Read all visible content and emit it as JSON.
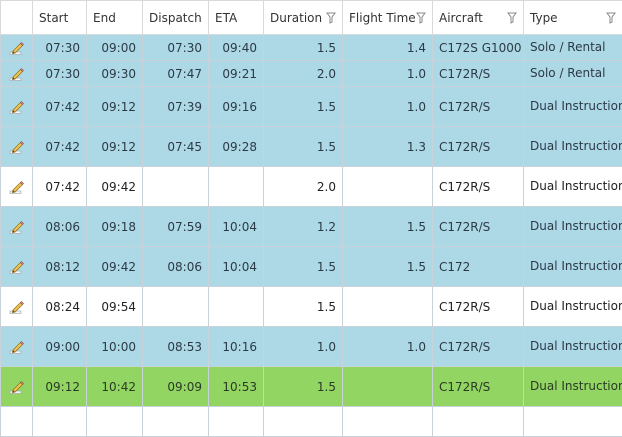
{
  "columns": {
    "start": "Start",
    "end": "End",
    "dispatch": "Dispatch",
    "eta": "ETA",
    "duration": "Duration",
    "flight_time": "Flight Time",
    "aircraft": "Aircraft",
    "type": "Type"
  },
  "icons": {
    "edit": "pencil-edit-icon",
    "filter": "filter-funnel-icon"
  },
  "colors": {
    "scheduled_blue": "#add8e6",
    "active_green": "#92d562",
    "pending_white": "#ffffff"
  },
  "rows": [
    {
      "status": "blue",
      "start": "07:30",
      "end": "09:00",
      "dispatch": "07:30",
      "eta": "09:40",
      "duration": "1.5",
      "flight_time": "1.4",
      "aircraft": "C172S G1000",
      "type": "Solo / Rental"
    },
    {
      "status": "blue",
      "start": "07:30",
      "end": "09:30",
      "dispatch": "07:47",
      "eta": "09:21",
      "duration": "2.0",
      "flight_time": "1.0",
      "aircraft": "C172R/S",
      "type": "Solo / Rental"
    },
    {
      "status": "blue",
      "start": "07:42",
      "end": "09:12",
      "dispatch": "07:39",
      "eta": "09:16",
      "duration": "1.5",
      "flight_time": "1.0",
      "aircraft": "C172R/S",
      "type": "Dual Instruction"
    },
    {
      "status": "blue",
      "start": "07:42",
      "end": "09:12",
      "dispatch": "07:45",
      "eta": "09:28",
      "duration": "1.5",
      "flight_time": "1.3",
      "aircraft": "C172R/S",
      "type": "Dual Instruction"
    },
    {
      "status": "white",
      "start": "07:42",
      "end": "09:42",
      "dispatch": "",
      "eta": "",
      "duration": "2.0",
      "flight_time": "",
      "aircraft": "C172R/S",
      "type": "Dual Instruction"
    },
    {
      "status": "blue",
      "start": "08:06",
      "end": "09:18",
      "dispatch": "07:59",
      "eta": "10:04",
      "duration": "1.2",
      "flight_time": "1.5",
      "aircraft": "C172R/S",
      "type": "Dual Instruction"
    },
    {
      "status": "blue",
      "start": "08:12",
      "end": "09:42",
      "dispatch": "08:06",
      "eta": "10:04",
      "duration": "1.5",
      "flight_time": "1.5",
      "aircraft": "C172",
      "type": "Dual Instruction"
    },
    {
      "status": "white",
      "start": "08:24",
      "end": "09:54",
      "dispatch": "",
      "eta": "",
      "duration": "1.5",
      "flight_time": "",
      "aircraft": "C172R/S",
      "type": "Dual Instruction"
    },
    {
      "status": "blue",
      "start": "09:00",
      "end": "10:00",
      "dispatch": "08:53",
      "eta": "10:16",
      "duration": "1.0",
      "flight_time": "1.0",
      "aircraft": "C172R/S",
      "type": "Dual Instruction"
    },
    {
      "status": "green",
      "start": "09:12",
      "end": "10:42",
      "dispatch": "09:09",
      "eta": "10:53",
      "duration": "1.5",
      "flight_time": "",
      "aircraft": "C172R/S",
      "type": "Dual Instruction"
    },
    {
      "status": "white",
      "start": "",
      "end": "",
      "dispatch": "",
      "eta": "",
      "duration": "",
      "flight_time": "",
      "aircraft": "",
      "type": ""
    }
  ]
}
